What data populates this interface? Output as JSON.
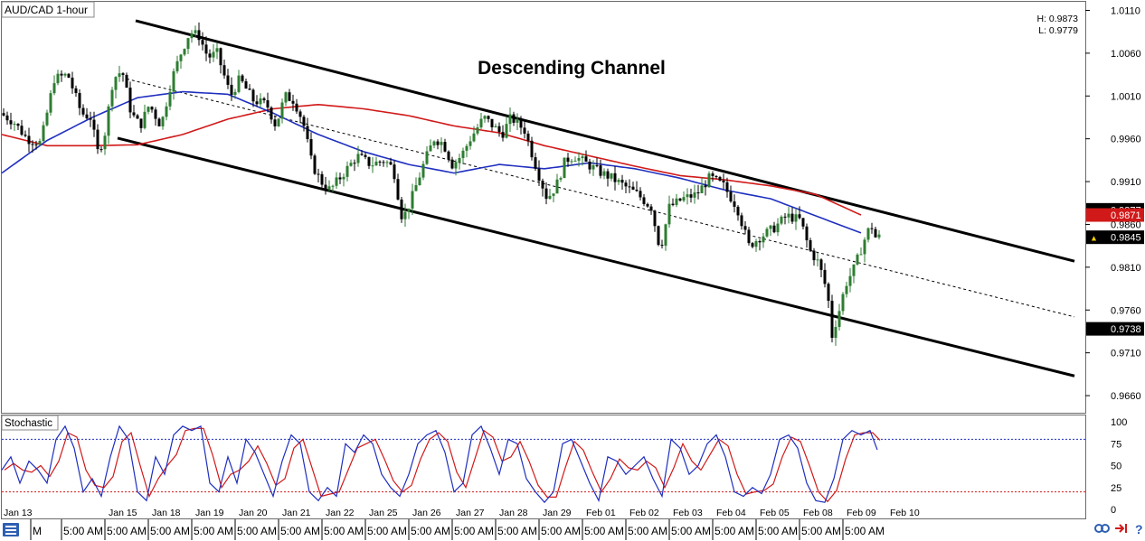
{
  "header": {
    "symbol_label": "AUD/CAD 1-hour"
  },
  "hl": {
    "high": "H: 0.9873",
    "low": "L: 0.9779"
  },
  "annotation": "Descending Channel",
  "price_axis": {
    "ticks": [
      "1.0110",
      "1.0060",
      "1.0010",
      "0.9960",
      "0.9910",
      "0.9860",
      "0.9810",
      "0.9760",
      "0.9710",
      "0.9660"
    ],
    "badges": [
      {
        "label": "0.9877",
        "value": 0.9877,
        "style": "black"
      },
      {
        "label": "0.9871",
        "value": 0.9871,
        "style": "red"
      },
      {
        "label": "0.9845",
        "value": 0.9845,
        "style": "black-arrow"
      },
      {
        "label": "0.9738",
        "value": 0.9738,
        "style": "black"
      }
    ]
  },
  "stoch_panel": {
    "label": "Stochastic",
    "ticks": [
      "100",
      "75",
      "50",
      "25",
      "0"
    ]
  },
  "time_axis": {
    "dates": [
      "Jan 13",
      "Jan 15",
      "Jan 18",
      "Jan 19",
      "Jan 20",
      "Jan 21",
      "Jan 22",
      "Jan 25",
      "Jan 26",
      "Jan 27",
      "Jan 28",
      "Jan 29",
      "Feb 01",
      "Feb 02",
      "Feb 03",
      "Feb 04",
      "Feb 05",
      "Feb 08",
      "Feb 09",
      "Feb 10"
    ],
    "times": [
      "M",
      "5:00 AM",
      "5:00 AM",
      "5:00 AM",
      "5:00 AM",
      "5:00 AM",
      "5:00 AM",
      "5:00 AM",
      "5:00 AM",
      "5:00 AM",
      "5:00 AM",
      "5:00 AM",
      "5:00 AM",
      "5:00 AM",
      "5:00 AM",
      "5:00 AM",
      "5:00 AM",
      "5:00 AM",
      "5:00 AM",
      "5:00 AM"
    ]
  },
  "footer_icons": [
    "menu-icon",
    "link-icon",
    "arrow-icon",
    "help-icon"
  ],
  "help_glyph": "?",
  "colors": {
    "bull": "#2e7d32",
    "bear": "#000000",
    "ma_fast": "#1f2fbf",
    "ma_slow": "#d11919",
    "stoch_k": "#1f2fbf",
    "stoch_d": "#d11919",
    "level_high": "#1f2fbf",
    "level_low": "#d11919"
  },
  "chart_data": {
    "type": "candlestick",
    "title": "Descending Channel",
    "pair": "AUD/CAD",
    "timeframe": "1-hour",
    "ylim": [
      0.964,
      1.012
    ],
    "channel": {
      "upper": [
        [
          "Jan 15",
          1.01
        ],
        [
          "Feb 10+",
          0.9817
        ]
      ],
      "lower": [
        [
          "Jan 18",
          0.9966
        ],
        [
          "Feb 10+",
          0.9683
        ]
      ],
      "mid": [
        [
          "Jan 18",
          1.003
        ],
        [
          "Feb 10+",
          0.9752
        ]
      ]
    },
    "moving_averages": {
      "fast": [
        [
          0,
          0.992
        ],
        [
          50,
          0.9958
        ],
        [
          100,
          0.9985
        ],
        [
          150,
          1.0008
        ],
        [
          200,
          1.0015
        ],
        [
          250,
          1.0012
        ],
        [
          300,
          0.999
        ],
        [
          350,
          0.9965
        ],
        [
          400,
          0.9945
        ],
        [
          450,
          0.993
        ],
        [
          500,
          0.992
        ],
        [
          550,
          0.993
        ],
        [
          600,
          0.9925
        ],
        [
          650,
          0.9932
        ],
        [
          700,
          0.9925
        ],
        [
          750,
          0.9914
        ],
        [
          800,
          0.99
        ],
        [
          850,
          0.989
        ],
        [
          900,
          0.987
        ],
        [
          950,
          0.985
        ]
      ],
      "slow": [
        [
          0,
          0.9965
        ],
        [
          50,
          0.9952
        ],
        [
          100,
          0.9952
        ],
        [
          150,
          0.9953
        ],
        [
          200,
          0.9965
        ],
        [
          250,
          0.9983
        ],
        [
          300,
          0.9995
        ],
        [
          350,
          1.0
        ],
        [
          400,
          0.9995
        ],
        [
          450,
          0.9987
        ],
        [
          500,
          0.9975
        ],
        [
          550,
          0.9967
        ],
        [
          600,
          0.9952
        ],
        [
          650,
          0.994
        ],
        [
          700,
          0.9928
        ],
        [
          750,
          0.9917
        ],
        [
          800,
          0.9912
        ],
        [
          850,
          0.9905
        ],
        [
          900,
          0.9895
        ],
        [
          950,
          0.9871
        ]
      ]
    },
    "price_path": [
      [
        0,
        0.999
      ],
      [
        15,
        0.998
      ],
      [
        30,
        0.996
      ],
      [
        45,
        0.9955
      ],
      [
        60,
        1.003
      ],
      [
        75,
        1.0035
      ],
      [
        90,
        0.999
      ],
      [
        100,
        0.9985
      ],
      [
        108,
        0.9945
      ],
      [
        115,
        0.996
      ],
      [
        125,
        1.003
      ],
      [
        135,
        1.004
      ],
      [
        145,
        0.999
      ],
      [
        155,
        0.9975
      ],
      [
        165,
        1.0
      ],
      [
        178,
        0.9975
      ],
      [
        190,
        1.003
      ],
      [
        200,
        1.006
      ],
      [
        210,
        1.0085
      ],
      [
        220,
        1.008
      ],
      [
        230,
        1.0055
      ],
      [
        240,
        1.006
      ],
      [
        255,
        1.001
      ],
      [
        265,
        1.003
      ],
      [
        280,
        1.0005
      ],
      [
        295,
        1.0
      ],
      [
        305,
        0.9975
      ],
      [
        315,
        1.001
      ],
      [
        325,
        1.0005
      ],
      [
        335,
        0.998
      ],
      [
        345,
        0.993
      ],
      [
        355,
        0.991
      ],
      [
        365,
        0.99
      ],
      [
        380,
        0.992
      ],
      [
        395,
        0.994
      ],
      [
        410,
        0.993
      ],
      [
        425,
        0.9935
      ],
      [
        435,
        0.9925
      ],
      [
        445,
        0.9865
      ],
      [
        455,
        0.989
      ],
      [
        470,
        0.9935
      ],
      [
        480,
        0.996
      ],
      [
        490,
        0.9955
      ],
      [
        500,
        0.993
      ],
      [
        510,
        0.994
      ],
      [
        520,
        0.996
      ],
      [
        535,
        0.9985
      ],
      [
        545,
        0.9975
      ],
      [
        555,
        0.9965
      ],
      [
        565,
        0.9985
      ],
      [
        580,
        0.997
      ],
      [
        595,
        0.992
      ],
      [
        605,
        0.989
      ],
      [
        615,
        0.9905
      ],
      [
        625,
        0.9935
      ],
      [
        635,
        0.994
      ],
      [
        650,
        0.993
      ],
      [
        665,
        0.992
      ],
      [
        675,
        0.9915
      ],
      [
        690,
        0.9905
      ],
      [
        705,
        0.9895
      ],
      [
        720,
        0.988
      ],
      [
        730,
        0.983
      ],
      [
        740,
        0.988
      ],
      [
        755,
        0.989
      ],
      [
        770,
        0.9895
      ],
      [
        785,
        0.9915
      ],
      [
        800,
        0.9905
      ],
      [
        815,
        0.988
      ],
      [
        828,
        0.9835
      ],
      [
        840,
        0.9845
      ],
      [
        855,
        0.9855
      ],
      [
        870,
        0.987
      ],
      [
        885,
        0.9865
      ],
      [
        895,
        0.983
      ],
      [
        905,
        0.9815
      ],
      [
        915,
        0.978
      ],
      [
        920,
        0.973
      ],
      [
        928,
        0.976
      ],
      [
        935,
        0.979
      ],
      [
        945,
        0.981
      ],
      [
        955,
        0.984
      ],
      [
        963,
        0.986
      ],
      [
        968,
        0.9845
      ]
    ],
    "stochastic": {
      "k": [
        [
          0,
          45
        ],
        [
          10,
          60
        ],
        [
          20,
          30
        ],
        [
          30,
          55
        ],
        [
          40,
          45
        ],
        [
          50,
          30
        ],
        [
          60,
          80
        ],
        [
          70,
          95
        ],
        [
          80,
          70
        ],
        [
          90,
          20
        ],
        [
          100,
          35
        ],
        [
          110,
          15
        ],
        [
          120,
          60
        ],
        [
          130,
          95
        ],
        [
          140,
          80
        ],
        [
          150,
          20
        ],
        [
          160,
          10
        ],
        [
          170,
          60
        ],
        [
          180,
          40
        ],
        [
          190,
          85
        ],
        [
          200,
          95
        ],
        [
          210,
          90
        ],
        [
          220,
          95
        ],
        [
          230,
          30
        ],
        [
          240,
          20
        ],
        [
          250,
          60
        ],
        [
          260,
          30
        ],
        [
          270,
          80
        ],
        [
          280,
          65
        ],
        [
          290,
          40
        ],
        [
          300,
          15
        ],
        [
          310,
          55
        ],
        [
          320,
          85
        ],
        [
          330,
          75
        ],
        [
          340,
          20
        ],
        [
          350,
          10
        ],
        [
          360,
          25
        ],
        [
          370,
          15
        ],
        [
          380,
          75
        ],
        [
          390,
          65
        ],
        [
          400,
          85
        ],
        [
          410,
          75
        ],
        [
          420,
          40
        ],
        [
          430,
          25
        ],
        [
          440,
          15
        ],
        [
          450,
          40
        ],
        [
          460,
          75
        ],
        [
          470,
          85
        ],
        [
          480,
          90
        ],
        [
          490,
          65
        ],
        [
          500,
          20
        ],
        [
          510,
          30
        ],
        [
          520,
          85
        ],
        [
          530,
          95
        ],
        [
          540,
          70
        ],
        [
          550,
          40
        ],
        [
          560,
          80
        ],
        [
          570,
          75
        ],
        [
          580,
          35
        ],
        [
          590,
          20
        ],
        [
          600,
          8
        ],
        [
          610,
          20
        ],
        [
          620,
          75
        ],
        [
          630,
          80
        ],
        [
          640,
          55
        ],
        [
          650,
          30
        ],
        [
          660,
          10
        ],
        [
          670,
          60
        ],
        [
          680,
          55
        ],
        [
          690,
          40
        ],
        [
          700,
          50
        ],
        [
          710,
          60
        ],
        [
          720,
          35
        ],
        [
          730,
          15
        ],
        [
          740,
          80
        ],
        [
          750,
          70
        ],
        [
          760,
          40
        ],
        [
          770,
          50
        ],
        [
          780,
          75
        ],
        [
          790,
          85
        ],
        [
          800,
          60
        ],
        [
          810,
          20
        ],
        [
          820,
          15
        ],
        [
          830,
          25
        ],
        [
          840,
          18
        ],
        [
          850,
          40
        ],
        [
          860,
          80
        ],
        [
          870,
          85
        ],
        [
          880,
          70
        ],
        [
          890,
          30
        ],
        [
          900,
          10
        ],
        [
          910,
          8
        ],
        [
          920,
          35
        ],
        [
          930,
          80
        ],
        [
          940,
          90
        ],
        [
          950,
          85
        ],
        [
          960,
          90
        ],
        [
          968,
          68
        ]
      ],
      "levels": [
        80,
        20
      ]
    }
  }
}
